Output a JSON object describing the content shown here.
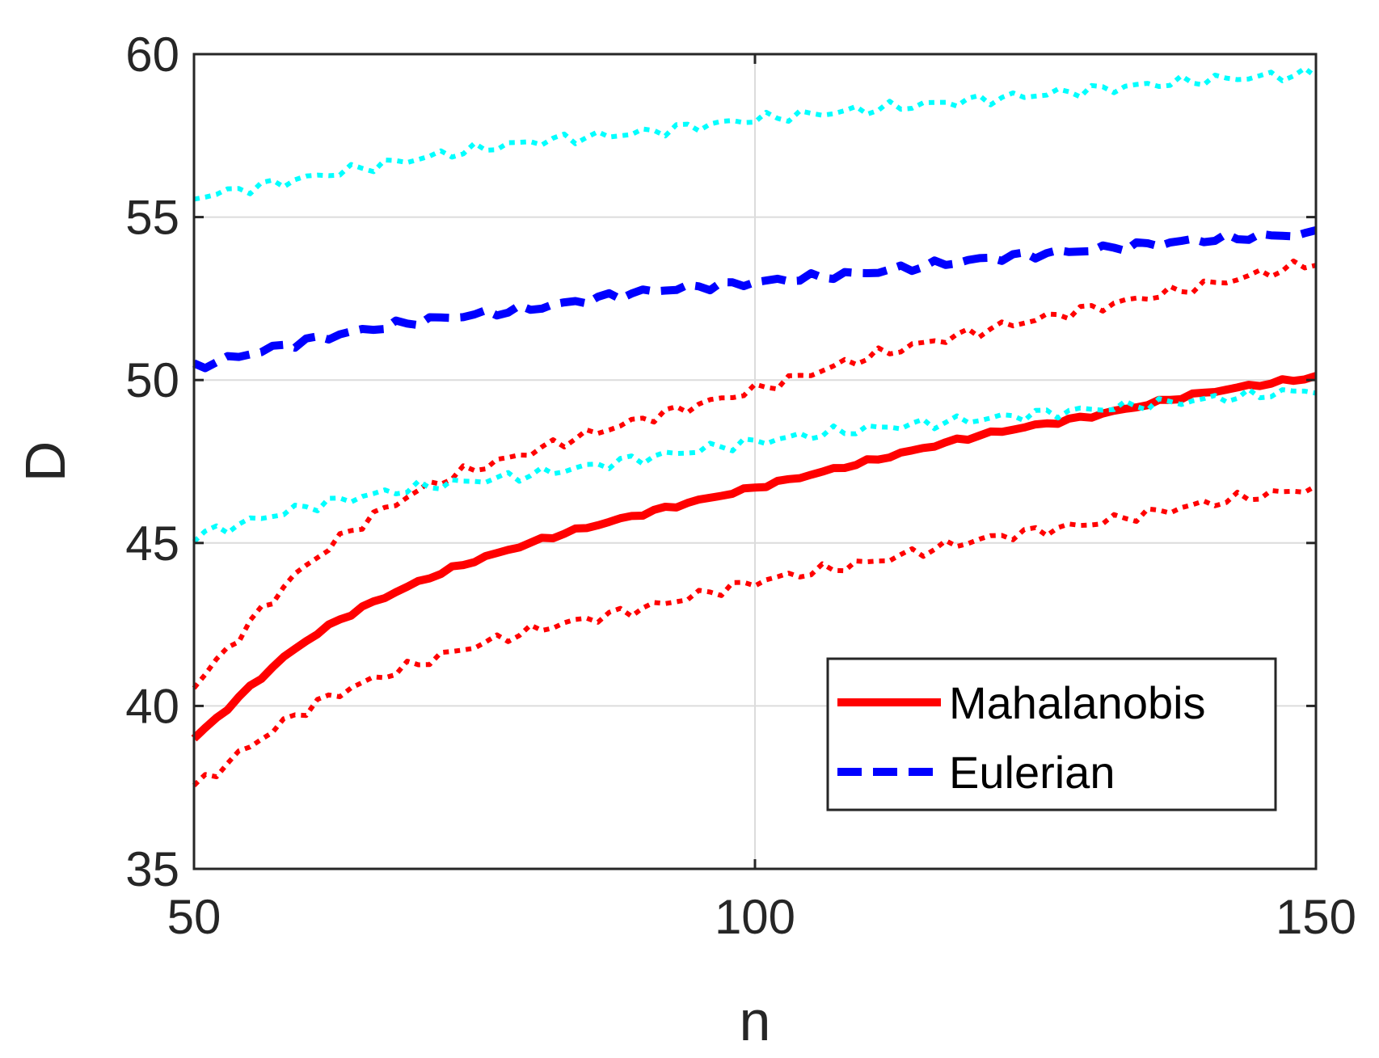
{
  "chart_data": {
    "type": "line",
    "title": "",
    "xlabel": "n",
    "ylabel": "D",
    "xlim": [
      50,
      150
    ],
    "ylim": [
      35,
      60
    ],
    "xticks": [
      50,
      100,
      150
    ],
    "yticks": [
      35,
      40,
      45,
      50,
      55,
      60
    ],
    "xtick_labels": [
      "50",
      "100",
      "150"
    ],
    "ytick_labels": [
      "35",
      "40",
      "45",
      "50",
      "55",
      "60"
    ],
    "grid": true,
    "legend_position": "bottom-right",
    "x": [
      50,
      60,
      70,
      80,
      90,
      100,
      110,
      120,
      130,
      140,
      150
    ],
    "series": [
      {
        "name": "Mahalanobis",
        "style": "solid",
        "color": "#ff0000",
        "in_legend": true,
        "values": [
          39.0,
          42.0,
          43.8,
          45.0,
          45.9,
          46.7,
          47.5,
          48.3,
          48.9,
          49.6,
          50.1
        ]
      },
      {
        "name": "Eulerian",
        "style": "dashed",
        "color": "#0000ff",
        "in_legend": true,
        "values": [
          50.4,
          51.2,
          51.8,
          52.2,
          52.7,
          53.0,
          53.3,
          53.7,
          54.0,
          54.3,
          54.5
        ]
      },
      {
        "name": "Mahalanobis upper bound",
        "style": "dotted",
        "color": "#ff0000",
        "in_legend": false,
        "values": [
          40.6,
          44.3,
          46.6,
          47.8,
          48.8,
          49.7,
          50.7,
          51.5,
          52.2,
          52.9,
          53.6
        ]
      },
      {
        "name": "Mahalanobis lower bound",
        "style": "dotted",
        "color": "#ff0000",
        "in_legend": false,
        "values": [
          37.5,
          39.9,
          41.3,
          42.3,
          43.0,
          43.8,
          44.4,
          45.1,
          45.6,
          46.2,
          46.7
        ]
      },
      {
        "name": "Eulerian upper bound",
        "style": "dotted",
        "color": "#00ffff",
        "in_legend": false,
        "values": [
          55.6,
          56.2,
          56.8,
          57.3,
          57.6,
          58.0,
          58.3,
          58.6,
          58.9,
          59.2,
          59.4
        ]
      },
      {
        "name": "Eulerian lower bound",
        "style": "dotted",
        "color": "#00ffff",
        "in_legend": false,
        "values": [
          45.2,
          46.1,
          46.7,
          47.1,
          47.6,
          48.1,
          48.5,
          48.8,
          49.1,
          49.4,
          49.7
        ]
      }
    ]
  }
}
